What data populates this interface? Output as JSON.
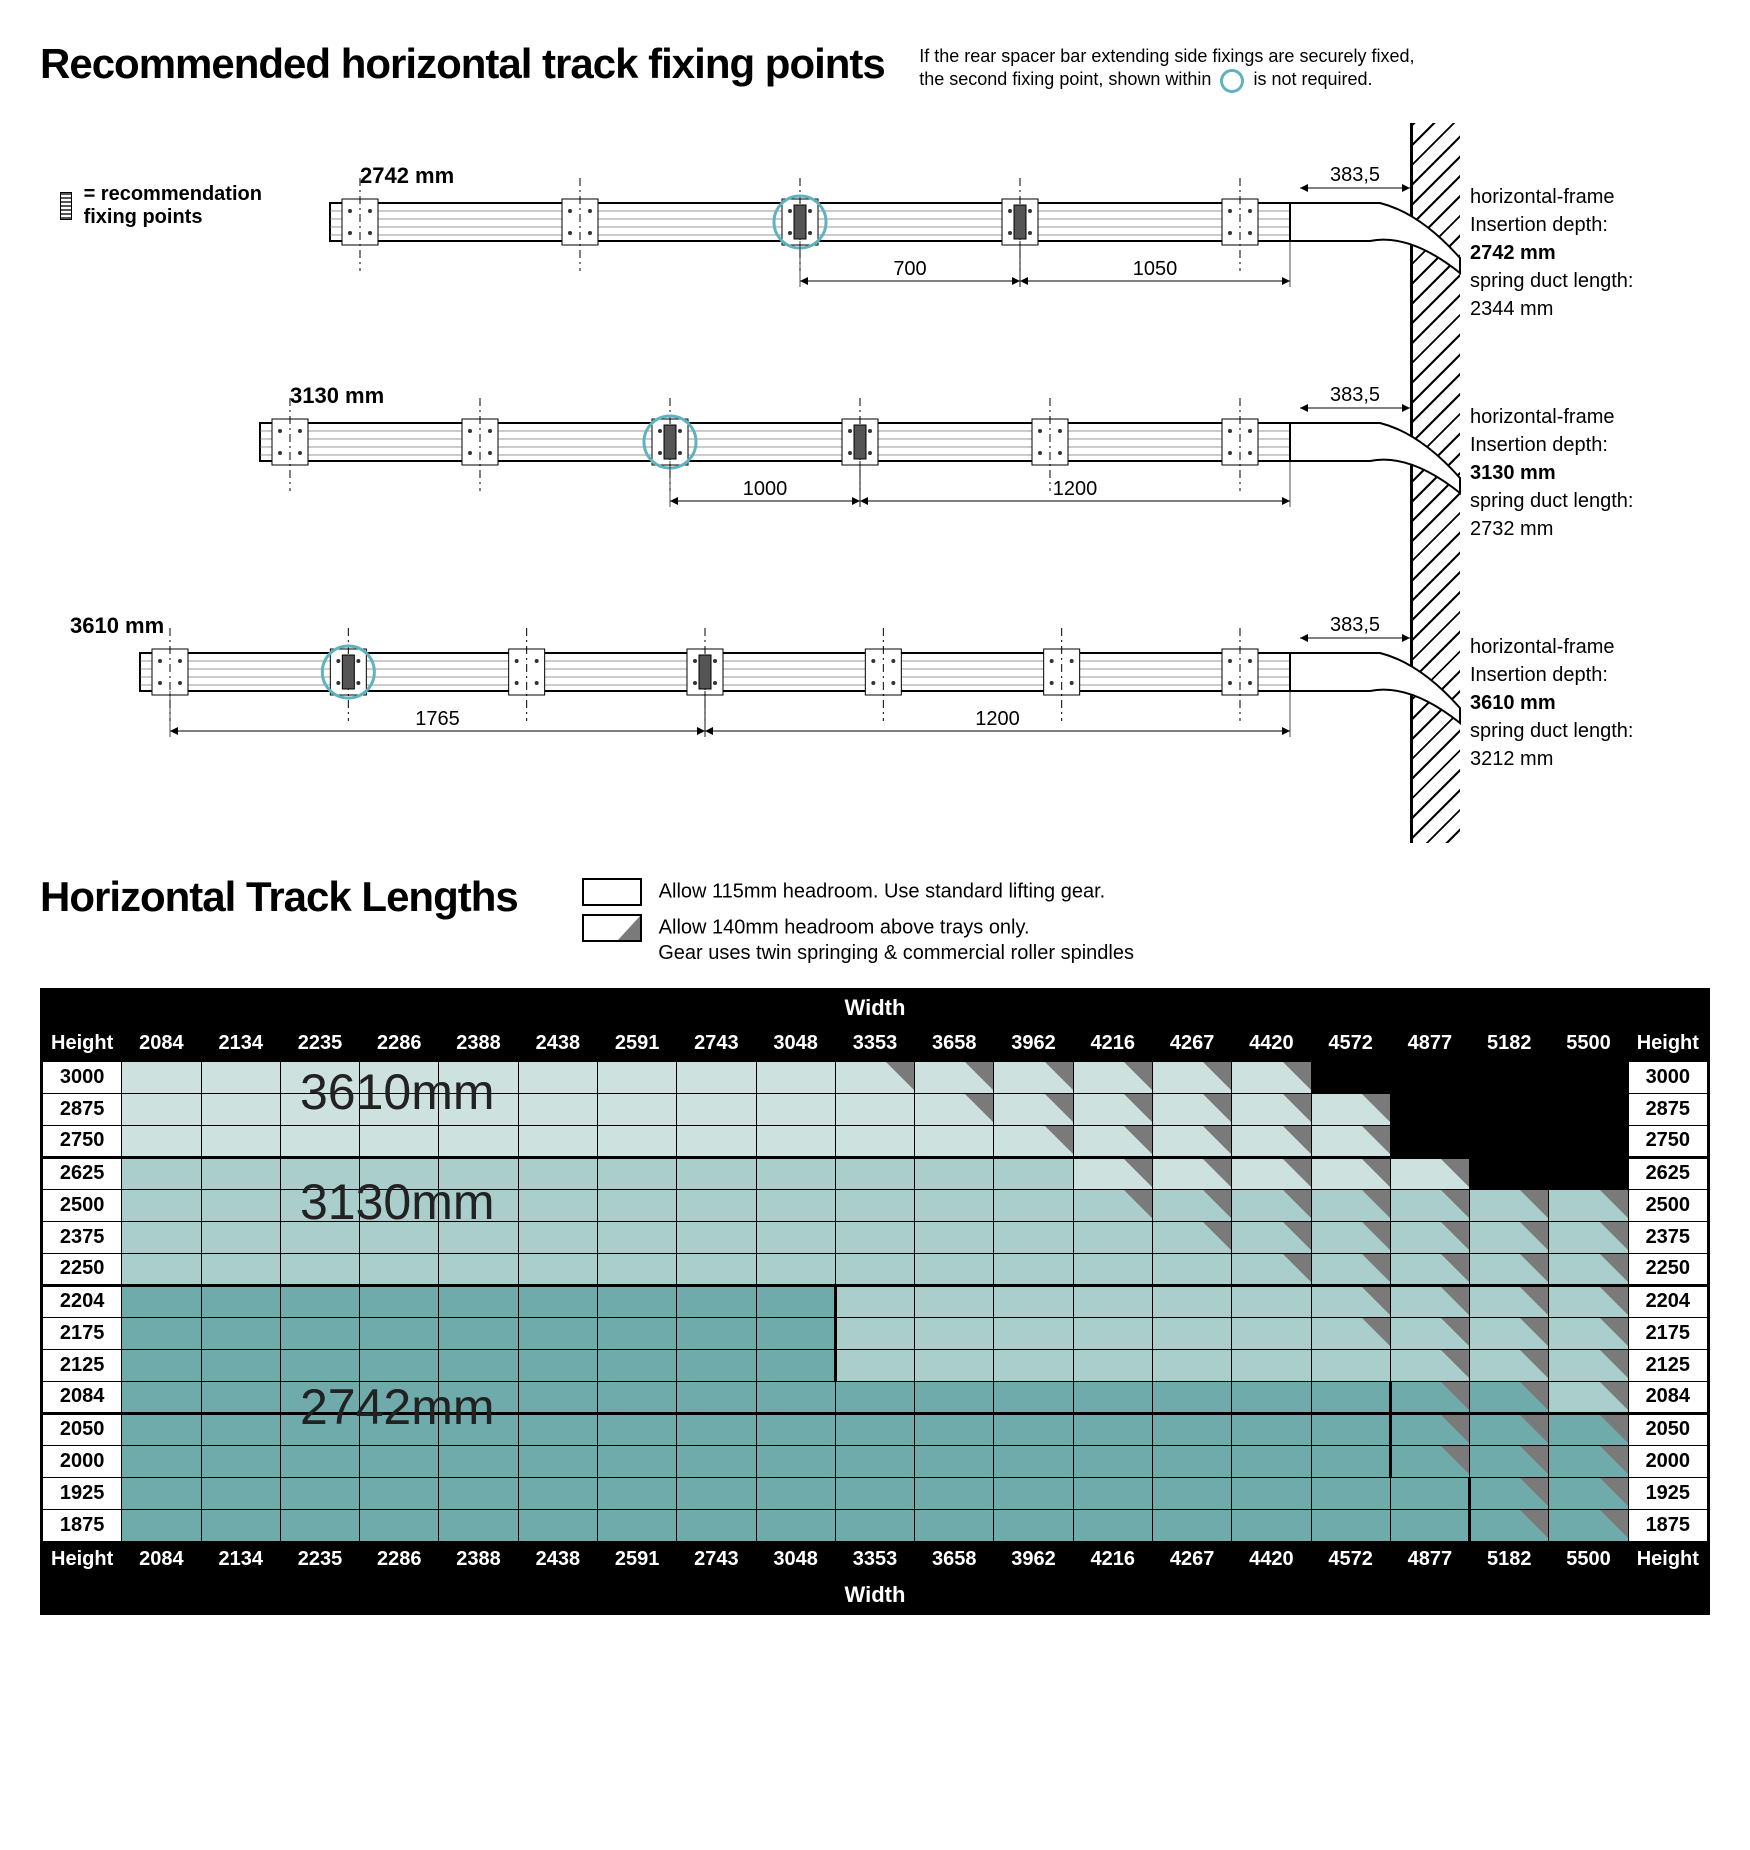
{
  "titles": {
    "main1": "Recommended horizontal track fixing points",
    "note1a": "If the rear spacer bar extending side fixings are securely fixed,",
    "note1b": "the second fixing point, shown within",
    "note1c": "is not required.",
    "legend_fixing": "= recommendation fixing points",
    "main2": "Horizontal Track Lengths",
    "legend2a": "Allow 115mm headroom. Use standard lifting gear.",
    "legend2b": "Allow 140mm headroom above trays only.",
    "legend2c": "Gear uses twin springing & commercial roller spindles"
  },
  "tracks": [
    {
      "length_label": "2742  mm",
      "end_dim": "383,5",
      "dim_a": "700",
      "dim_b": "1050",
      "info_frame": "horizontal-frame",
      "info_depth_label": "Insertion depth:",
      "info_depth": "2742  mm",
      "info_spring_label": "spring duct length:",
      "info_spring": "2344 mm"
    },
    {
      "length_label": "3130 mm",
      "end_dim": "383,5",
      "dim_a": "1000",
      "dim_b": "1200",
      "info_frame": "horizontal-frame",
      "info_depth_label": "Insertion depth:",
      "info_depth": "3130 mm",
      "info_spring_label": "spring duct length:",
      "info_spring": "2732 mm"
    },
    {
      "length_label": "3610 mm",
      "end_dim": "383,5",
      "dim_a": "1765",
      "dim_b": "1200",
      "info_frame": "horizontal-frame",
      "info_depth_label": "Insertion depth:",
      "info_depth": "3610 mm",
      "info_spring_label": "spring duct length:",
      "info_spring": "3212 mm"
    }
  ],
  "colors": {
    "zone1": "#cde1de",
    "zone2": "#a9cecb",
    "zone3": "#6fabab",
    "circle": "#5fb3bf"
  },
  "table": {
    "width_label": "Width",
    "height_label": "Height",
    "widths": [
      "2084",
      "2134",
      "2235",
      "2286",
      "2388",
      "2438",
      "2591",
      "2743",
      "3048",
      "3353",
      "3658",
      "3962",
      "4216",
      "4267",
      "4420",
      "4572",
      "4877",
      "5182",
      "5500"
    ],
    "heights": [
      "3000",
      "2875",
      "2750",
      "2625",
      "2500",
      "2375",
      "2250",
      "2204",
      "2175",
      "2125",
      "2084",
      "2050",
      "2000",
      "1925",
      "1875"
    ],
    "overlay1": "3610mm",
    "overlay2": "3130mm",
    "overlay3": "2742mm",
    "cells": [
      [
        1,
        1,
        1,
        1,
        1,
        1,
        1,
        1,
        1,
        4,
        4,
        4,
        4,
        4,
        4,
        0,
        0,
        0,
        0
      ],
      [
        1,
        1,
        1,
        1,
        1,
        1,
        1,
        1,
        1,
        1,
        4,
        4,
        4,
        4,
        4,
        4,
        0,
        0,
        0
      ],
      [
        1,
        1,
        1,
        1,
        1,
        1,
        1,
        1,
        1,
        1,
        1,
        4,
        4,
        4,
        4,
        4,
        0,
        0,
        0
      ],
      [
        2,
        2,
        2,
        2,
        2,
        2,
        2,
        2,
        2,
        2,
        2,
        2,
        4,
        4,
        4,
        4,
        4,
        0,
        0
      ],
      [
        2,
        2,
        2,
        2,
        2,
        2,
        2,
        2,
        2,
        2,
        2,
        2,
        5,
        5,
        5,
        5,
        5,
        5,
        5
      ],
      [
        2,
        2,
        2,
        2,
        2,
        2,
        2,
        2,
        2,
        2,
        2,
        2,
        2,
        5,
        5,
        5,
        5,
        5,
        5
      ],
      [
        2,
        2,
        2,
        2,
        2,
        2,
        2,
        2,
        2,
        2,
        2,
        2,
        2,
        2,
        5,
        5,
        5,
        5,
        5
      ],
      [
        3,
        3,
        3,
        3,
        3,
        3,
        3,
        3,
        3,
        2,
        2,
        2,
        2,
        2,
        2,
        5,
        5,
        5,
        5
      ],
      [
        3,
        3,
        3,
        3,
        3,
        3,
        3,
        3,
        3,
        2,
        2,
        2,
        2,
        2,
        2,
        5,
        5,
        5,
        5
      ],
      [
        3,
        3,
        3,
        3,
        3,
        3,
        3,
        3,
        3,
        2,
        2,
        2,
        2,
        2,
        2,
        2,
        5,
        5,
        5
      ],
      [
        3,
        3,
        3,
        3,
        3,
        3,
        3,
        3,
        3,
        3,
        3,
        3,
        3,
        3,
        3,
        3,
        6,
        6,
        5
      ],
      [
        3,
        3,
        3,
        3,
        3,
        3,
        3,
        3,
        3,
        3,
        3,
        3,
        3,
        3,
        3,
        3,
        6,
        6,
        6
      ],
      [
        3,
        3,
        3,
        3,
        3,
        3,
        3,
        3,
        3,
        3,
        3,
        3,
        3,
        3,
        3,
        3,
        6,
        6,
        6
      ],
      [
        3,
        3,
        3,
        3,
        3,
        3,
        3,
        3,
        3,
        3,
        3,
        3,
        3,
        3,
        3,
        3,
        3,
        6,
        6
      ],
      [
        3,
        3,
        3,
        3,
        3,
        3,
        3,
        3,
        3,
        3,
        3,
        3,
        3,
        3,
        3,
        3,
        3,
        6,
        6
      ]
    ],
    "thick_bottom_rows": [
      2,
      6,
      10
    ],
    "zone3_right_edge": {
      "7": 8,
      "8": 8,
      "9": 8,
      "10": 15,
      "11": 15,
      "12": 15,
      "13": 16,
      "14": 16
    },
    "zone3_start_row": 7
  }
}
